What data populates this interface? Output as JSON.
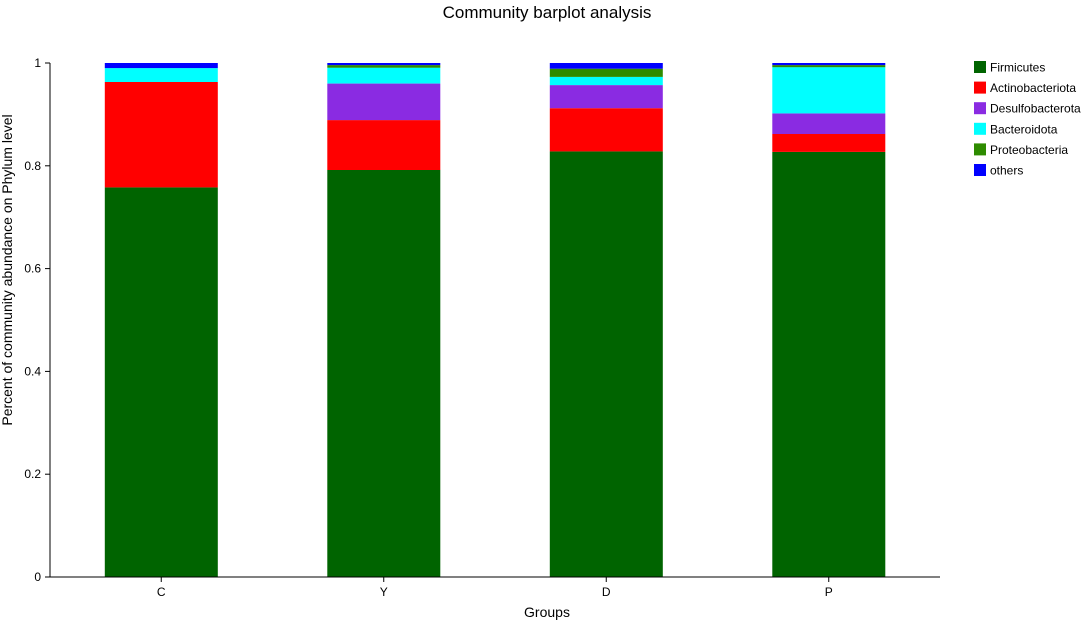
{
  "chart_data": {
    "type": "bar",
    "stacked": true,
    "title": "Community barplot analysis",
    "xlabel": "Groups",
    "ylabel": "Percent of community abundance on Phylum level",
    "categories": [
      "C",
      "Y",
      "D",
      "P"
    ],
    "ylim": [
      0,
      1
    ],
    "yticks": [
      "0",
      "0.2",
      "0.4",
      "0.6",
      "0.8",
      "1"
    ],
    "ytick_values": [
      0,
      0.2,
      0.4,
      0.6,
      0.8,
      1.0
    ],
    "grid": false,
    "legend_position": "right",
    "series": [
      {
        "name": "Firmicutes",
        "color": "#006400",
        "values": [
          0.758,
          0.792,
          0.828,
          0.827
        ]
      },
      {
        "name": "Actinobacteriota",
        "color": "#ff0000",
        "values": [
          0.205,
          0.097,
          0.084,
          0.035
        ]
      },
      {
        "name": "Desulfobacterota",
        "color": "#8a2be2",
        "values": [
          0.0,
          0.071,
          0.045,
          0.04
        ]
      },
      {
        "name": "Bacteroidota",
        "color": "#00ffff",
        "values": [
          0.027,
          0.031,
          0.016,
          0.09
        ]
      },
      {
        "name": "Proteobacteria",
        "color": "#2e8b00",
        "values": [
          0.0,
          0.005,
          0.016,
          0.004
        ]
      },
      {
        "name": "others",
        "color": "#0000ff",
        "values": [
          0.01,
          0.004,
          0.011,
          0.004
        ]
      }
    ]
  }
}
